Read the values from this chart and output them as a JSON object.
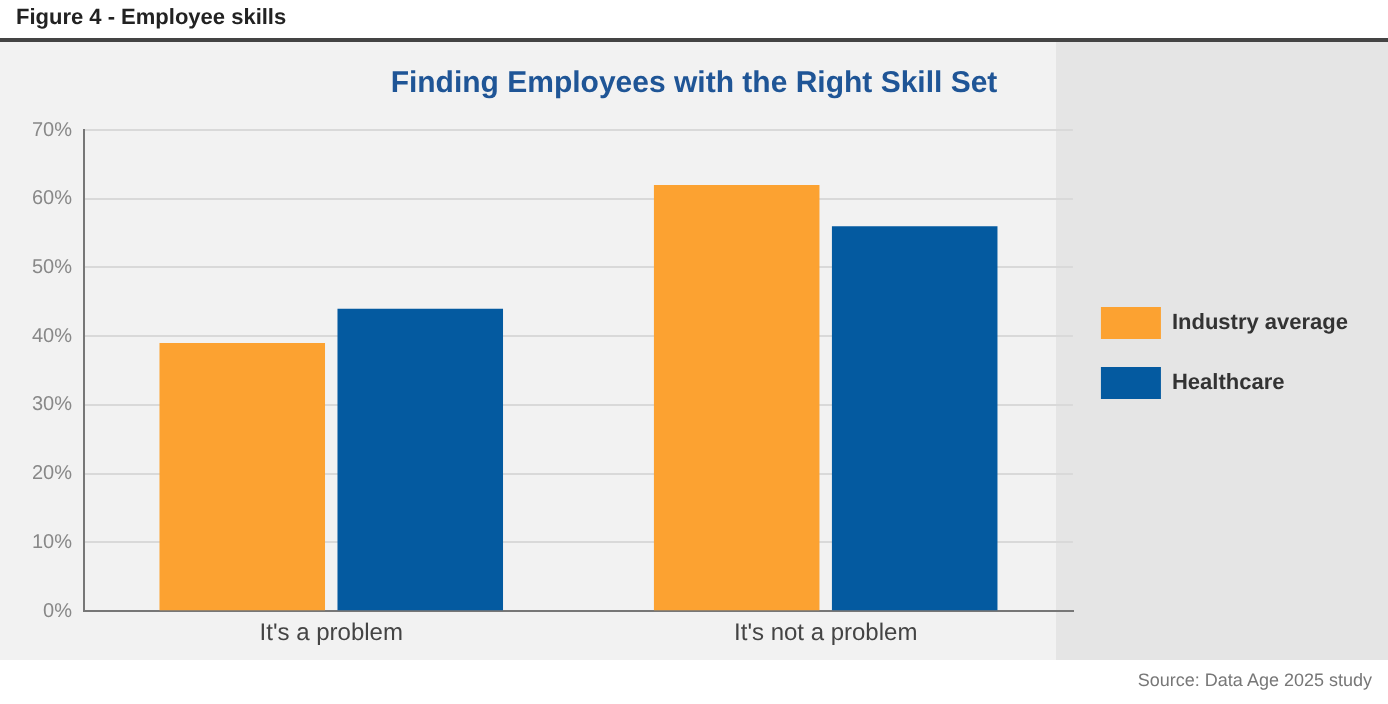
{
  "chart_data": {
    "type": "bar",
    "title": "Finding Employees with the Right Skill Set",
    "subtitle": "Figure 4 - Employee skills",
    "categories": [
      "It's a problem",
      "It's not a problem"
    ],
    "series": [
      {
        "name": "Industry average",
        "color": "#fca231",
        "values": [
          39,
          62
        ]
      },
      {
        "name": "Healthcare",
        "color": "#045aa0",
        "values": [
          44,
          56
        ]
      }
    ],
    "ylim": [
      0,
      70
    ],
    "yticks": [
      {
        "value": 0,
        "label": "0%"
      },
      {
        "value": 10,
        "label": "10%"
      },
      {
        "value": 20,
        "label": "20%"
      },
      {
        "value": 30,
        "label": "30%"
      },
      {
        "value": 40,
        "label": "40%"
      },
      {
        "value": 50,
        "label": "50%"
      },
      {
        "value": 60,
        "label": "60%"
      },
      {
        "value": 70,
        "label": "70%"
      }
    ],
    "grid": "y",
    "legend": "right",
    "annotations": [
      "Source: Data Age 2025 study"
    ]
  }
}
